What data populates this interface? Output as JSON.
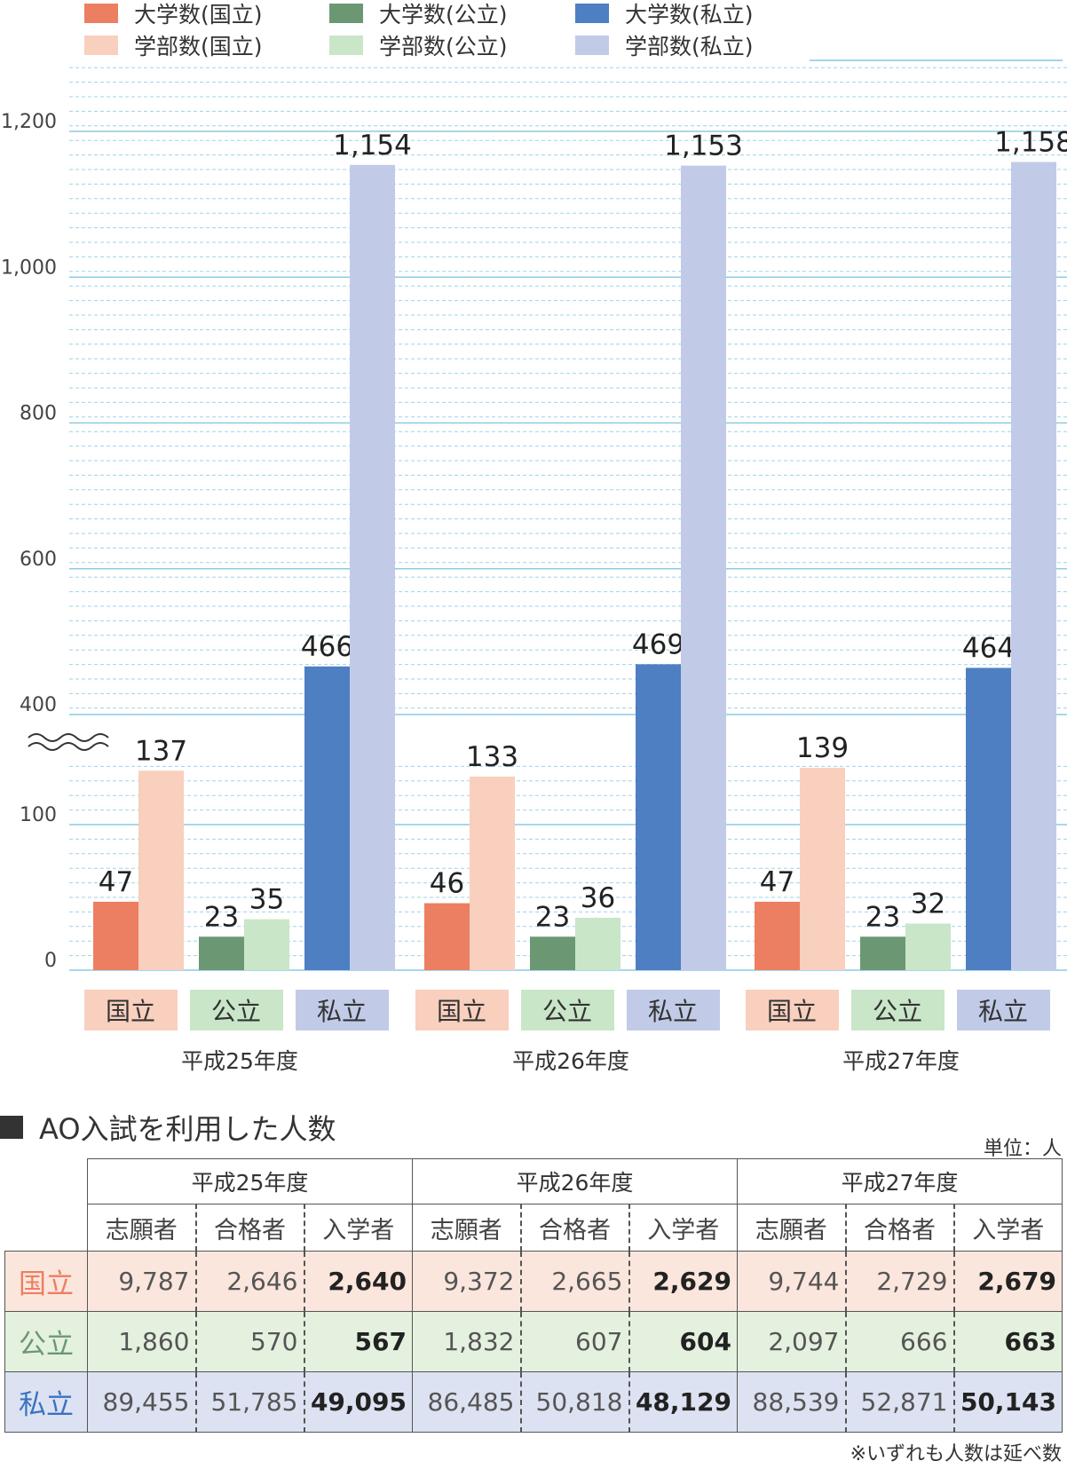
{
  "legend": [
    {
      "label": "大学数(国立)",
      "color": "#ec7f61"
    },
    {
      "label": "大学数(公立)",
      "color": "#6b9873"
    },
    {
      "label": "大学数(私立)",
      "color": "#4d7fc2"
    },
    {
      "label": "学部数(国立)",
      "color": "#f9cfbe"
    },
    {
      "label": "学部数(公立)",
      "color": "#c9e6c8"
    },
    {
      "label": "学部数(私立)",
      "color": "#c1cbe8"
    }
  ],
  "chart_data": {
    "type": "bar",
    "axis_break": true,
    "y_ticks": [
      "0",
      "100",
      "400",
      "600",
      "800",
      "1,000",
      "1,200"
    ],
    "grid": true,
    "legend_position": "top",
    "categories": [
      "平成25年度",
      "平成26年度",
      "平成27年度"
    ],
    "group_labels": [
      "国立",
      "公立",
      "私立"
    ],
    "group_label_colors": [
      "#f9cfbe",
      "#c9e6c8",
      "#c1cbe8"
    ],
    "series": [
      {
        "name": "大学数(国立)",
        "group": 0,
        "color": "#ec7f61",
        "values": [
          47,
          46,
          47
        ],
        "labels": [
          "47",
          "46",
          "47"
        ]
      },
      {
        "name": "学部数(国立)",
        "group": 0,
        "color": "#f9cfbe",
        "values": [
          137,
          133,
          139
        ],
        "labels": [
          "137",
          "133",
          "139"
        ]
      },
      {
        "name": "大学数(公立)",
        "group": 1,
        "color": "#6b9873",
        "values": [
          23,
          23,
          23
        ],
        "labels": [
          "23",
          "23",
          "23"
        ]
      },
      {
        "name": "学部数(公立)",
        "group": 1,
        "color": "#c9e6c8",
        "values": [
          35,
          36,
          32
        ],
        "labels": [
          "35",
          "36",
          "32"
        ]
      },
      {
        "name": "大学数(私立)",
        "group": 2,
        "color": "#4d7fc2",
        "values": [
          466,
          469,
          464
        ],
        "labels": [
          "466",
          "469",
          "464"
        ]
      },
      {
        "name": "学部数(私立)",
        "group": 2,
        "color": "#c1cbe8",
        "values": [
          1154,
          1153,
          1158
        ],
        "labels": [
          "1,154",
          "1,153",
          "1,158"
        ]
      }
    ]
  },
  "table": {
    "title": "AO入試を利用した人数",
    "unit": "単位：人",
    "years": [
      "平成25年度",
      "平成26年度",
      "平成27年度"
    ],
    "columns": [
      "志願者",
      "合格者",
      "入学者"
    ],
    "rows": [
      {
        "label": "国立",
        "color": "#ec7f61",
        "values": [
          "9,787",
          "2,646",
          "2,640",
          "9,372",
          "2,665",
          "2,629",
          "9,744",
          "2,729",
          "2,679"
        ]
      },
      {
        "label": "公立",
        "color": "#6b9873",
        "values": [
          "1,860",
          "570",
          "567",
          "1,832",
          "607",
          "604",
          "2,097",
          "666",
          "663"
        ]
      },
      {
        "label": "私立",
        "color": "#3a72c4",
        "values": [
          "89,455",
          "51,785",
          "49,095",
          "86,485",
          "50,818",
          "48,129",
          "88,539",
          "52,871",
          "50,143"
        ]
      }
    ],
    "note": "※いずれも人数は延べ数"
  }
}
